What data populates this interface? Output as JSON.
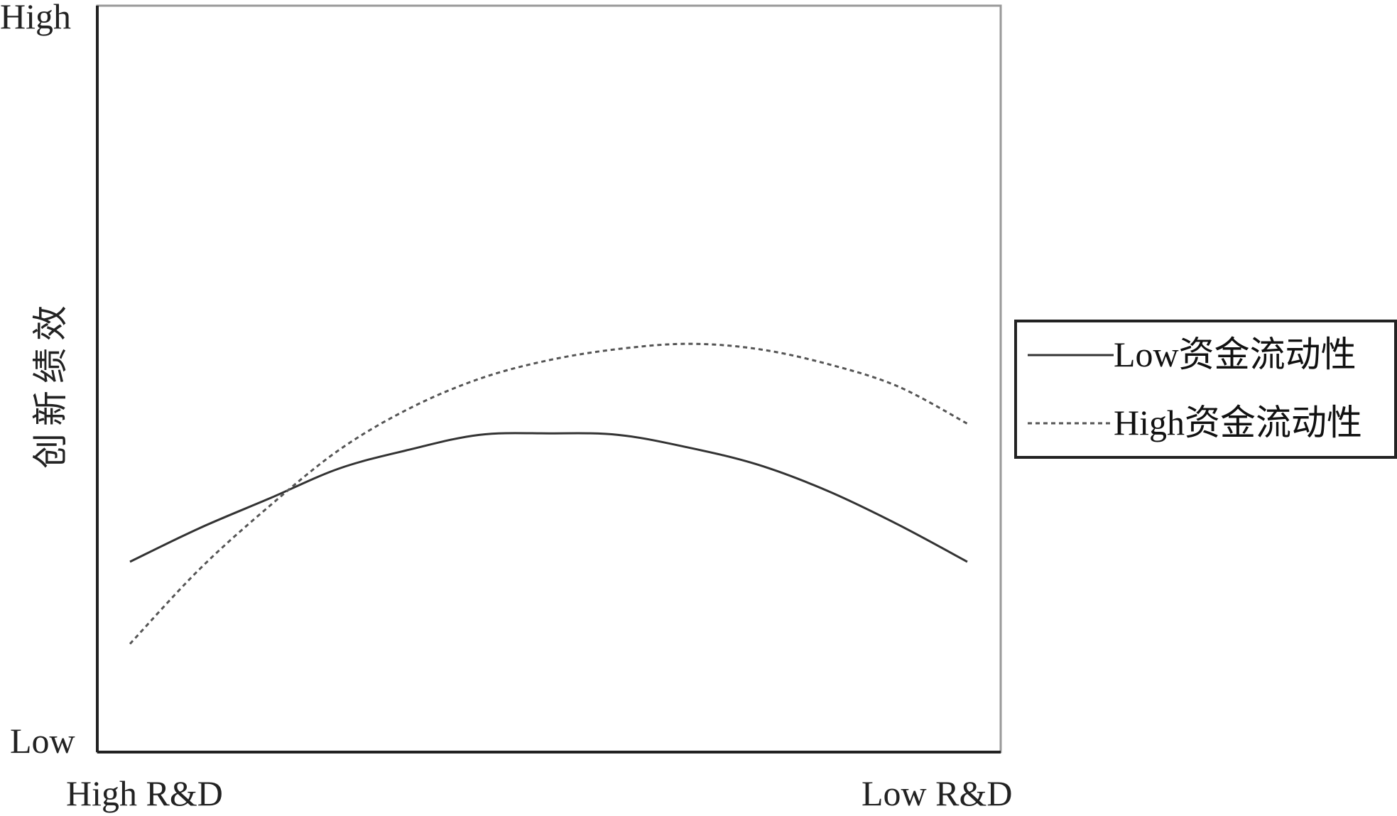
{
  "chart_data": {
    "type": "line",
    "title": "",
    "xlabel": "",
    "ylabel": "创新绩效",
    "x_tick_labels": [
      "High R&D",
      "Low R&D"
    ],
    "y_tick_labels": [
      "Low",
      "High"
    ],
    "xlim": [
      0,
      1
    ],
    "ylim": [
      0,
      1
    ],
    "grid": false,
    "legend_position": "right",
    "x": [
      0.0,
      0.083,
      0.167,
      0.25,
      0.333,
      0.417,
      0.5,
      0.583,
      0.667,
      0.75,
      0.833,
      0.917,
      1.0
    ],
    "series": [
      {
        "name": "Low资金流动性",
        "style": "solid",
        "color": "#333333",
        "values": [
          0.255,
          0.3,
          0.34,
          0.38,
          0.405,
          0.425,
          0.427,
          0.425,
          0.408,
          0.385,
          0.35,
          0.305,
          0.255
        ]
      },
      {
        "name": "High资金流动性",
        "style": "dashed",
        "color": "#555555",
        "values": [
          0.145,
          0.245,
          0.33,
          0.405,
          0.46,
          0.5,
          0.525,
          0.54,
          0.547,
          0.54,
          0.52,
          0.49,
          0.44
        ]
      }
    ]
  }
}
